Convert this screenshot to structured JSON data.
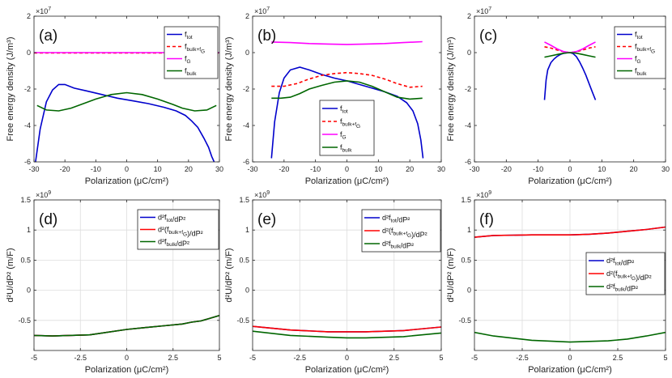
{
  "chart_data": [
    {
      "type": "line",
      "label": "(a)",
      "scale": "×10",
      "scale_exp": "7",
      "xlabel": "Polarization",
      "xunit": "(μC/cm²)",
      "ylabel": "Free energy density (J/m³)",
      "xlim": [
        -30,
        30
      ],
      "ylim": [
        -6,
        2
      ],
      "xticks": [
        "-30",
        "-20",
        "-10",
        "0",
        "10",
        "20",
        "30"
      ],
      "yticks": [
        "-6",
        "-4",
        "-2",
        "0",
        "2"
      ],
      "grid": false,
      "legend_position": "top-right",
      "series": [
        {
          "name": "f_tot",
          "color": "#0000cc",
          "dash": "",
          "x": [
            -29.5,
            -28,
            -26,
            -24,
            -22,
            -20,
            -17,
            -13,
            -8,
            -3,
            2,
            7,
            12,
            16,
            19,
            21,
            23,
            25,
            26.5,
            27.5,
            28.3
          ],
          "y": [
            -6,
            -4.2,
            -2.7,
            -2.05,
            -1.75,
            -1.75,
            -1.95,
            -2.1,
            -2.3,
            -2.5,
            -2.65,
            -2.8,
            -3.0,
            -3.2,
            -3.45,
            -3.75,
            -4.1,
            -4.7,
            -5.2,
            -5.7,
            -6
          ]
        },
        {
          "name": "f_bulk+f_G",
          "color": "#ff0000",
          "dash": "4 3",
          "x": [
            -30,
            30
          ],
          "y": [
            -0.02,
            -0.02
          ]
        },
        {
          "name": "f_G",
          "color": "#ff00ff",
          "dash": "",
          "x": [
            -30,
            30
          ],
          "y": [
            0,
            0
          ]
        },
        {
          "name": "f_bulk",
          "color": "#006600",
          "dash": "",
          "x": [
            -29,
            -26,
            -22,
            -18,
            -14,
            -10,
            -5,
            0,
            5,
            10,
            15,
            18,
            22,
            26,
            29
          ],
          "y": [
            -2.9,
            -3.15,
            -3.2,
            -3.05,
            -2.8,
            -2.55,
            -2.3,
            -2.2,
            -2.3,
            -2.55,
            -2.85,
            -3.05,
            -3.2,
            -3.15,
            -2.9
          ]
        }
      ]
    },
    {
      "type": "line",
      "label": "(b)",
      "scale": "×10",
      "scale_exp": "7",
      "xlabel": "Polarization",
      "xunit": "(μC/cm²)",
      "ylabel": "Free energy density (J/m³)",
      "xlim": [
        -30,
        30
      ],
      "ylim": [
        -6,
        2
      ],
      "xticks": [
        "-30",
        "-20",
        "-10",
        "0",
        "10",
        "20",
        "30"
      ],
      "yticks": [
        "-6",
        "-4",
        "-2",
        "0",
        "2"
      ],
      "grid": false,
      "legend_position": "bottom-right",
      "series": [
        {
          "name": "f_tot",
          "color": "#0000cc",
          "dash": "",
          "x": [
            -24,
            -23,
            -21.5,
            -20,
            -18,
            -15,
            -12,
            -8,
            -4,
            0,
            4,
            8,
            12,
            16,
            19,
            21,
            22.5,
            23.5,
            24.2
          ],
          "y": [
            -5.8,
            -3.8,
            -2.2,
            -1.4,
            -0.95,
            -0.8,
            -0.95,
            -1.2,
            -1.4,
            -1.55,
            -1.75,
            -1.95,
            -2.15,
            -2.4,
            -2.75,
            -3.2,
            -3.9,
            -4.8,
            -5.8
          ]
        },
        {
          "name": "f_bulk+f_G",
          "color": "#ff0000",
          "dash": "4 3",
          "x": [
            -24,
            -20,
            -16,
            -12,
            -8,
            -4,
            0,
            4,
            8,
            12,
            16,
            20,
            24
          ],
          "y": [
            -1.85,
            -1.85,
            -1.7,
            -1.45,
            -1.25,
            -1.15,
            -1.1,
            -1.15,
            -1.25,
            -1.45,
            -1.7,
            -1.9,
            -1.85
          ]
        },
        {
          "name": "f_G",
          "color": "#ff00ff",
          "dash": "",
          "x": [
            -24,
            -18,
            -12,
            -6,
            0,
            6,
            12,
            18,
            24
          ],
          "y": [
            0.58,
            0.55,
            0.5,
            0.47,
            0.45,
            0.47,
            0.5,
            0.55,
            0.6
          ]
        },
        {
          "name": "f_bulk",
          "color": "#006600",
          "dash": "",
          "x": [
            -24,
            -21,
            -18,
            -15,
            -12,
            -8,
            -4,
            0,
            4,
            8,
            12,
            16,
            20,
            24
          ],
          "y": [
            -2.5,
            -2.5,
            -2.45,
            -2.25,
            -2.0,
            -1.8,
            -1.62,
            -1.55,
            -1.62,
            -1.85,
            -2.15,
            -2.45,
            -2.55,
            -2.5
          ]
        }
      ]
    },
    {
      "type": "line",
      "label": "(c)",
      "scale": "×10",
      "scale_exp": "7",
      "xlabel": "Polarization",
      "xunit": "(μC/cm²)",
      "ylabel": "Free energy density (J/m³)",
      "xlim": [
        -30,
        30
      ],
      "ylim": [
        -6,
        2
      ],
      "xticks": [
        "-30",
        "-20",
        "-10",
        "0",
        "10",
        "20",
        "30"
      ],
      "yticks": [
        "-6",
        "-4",
        "-2",
        "0",
        "2"
      ],
      "grid": false,
      "legend_position": "top-right",
      "series": [
        {
          "name": "f_tot",
          "color": "#0000cc",
          "dash": "",
          "x": [
            -8,
            -7.5,
            -7,
            -6,
            -5,
            -4,
            -3,
            -2,
            -1,
            0,
            1,
            2,
            3,
            4,
            5,
            6,
            7,
            8
          ],
          "y": [
            -2.6,
            -1.5,
            -0.95,
            -0.55,
            -0.35,
            -0.2,
            -0.1,
            -0.04,
            -0.01,
            0,
            -0.06,
            -0.22,
            -0.5,
            -0.85,
            -1.25,
            -1.7,
            -2.15,
            -2.6
          ]
        },
        {
          "name": "f_bulk+f_G",
          "color": "#ff0000",
          "dash": "4 3",
          "x": [
            -8,
            -6,
            -4,
            -2,
            0,
            2,
            4,
            6,
            8
          ],
          "y": [
            0.32,
            0.25,
            0.14,
            0.05,
            0,
            0.05,
            0.14,
            0.25,
            0.32
          ]
        },
        {
          "name": "f_G",
          "color": "#ff00ff",
          "dash": "",
          "x": [
            -8,
            -6,
            -4,
            -2,
            0,
            2,
            4,
            6,
            8
          ],
          "y": [
            0.58,
            0.4,
            0.2,
            0.06,
            0,
            0.06,
            0.2,
            0.4,
            0.58
          ]
        },
        {
          "name": "f_bulk",
          "color": "#006600",
          "dash": "",
          "x": [
            -8,
            -6,
            -4,
            -2,
            0,
            2,
            4,
            6,
            8
          ],
          "y": [
            -0.25,
            -0.18,
            -0.1,
            -0.03,
            0,
            -0.03,
            -0.1,
            -0.18,
            -0.25
          ]
        }
      ]
    },
    {
      "type": "line",
      "label": "(d)",
      "scale": "×10",
      "scale_exp": "9",
      "xlabel": "Polarization",
      "xunit": "(μC/cm²)",
      "ylabel": "d²U/dP² (m/F)",
      "xlim": [
        -5,
        5
      ],
      "ylim": [
        -1,
        1.5
      ],
      "xticks": [
        "-5",
        "-2.5",
        "0",
        "2.5",
        "5"
      ],
      "yticks": [
        "-0.5",
        "0",
        "0.5",
        "1",
        "1.5"
      ],
      "grid": true,
      "legend_position": "top-right",
      "series": [
        {
          "name": "d²f_tot/dP²",
          "color": "#0000cc",
          "dash": "",
          "x": [
            -5,
            -4,
            -2,
            0,
            1,
            2,
            3,
            3.5,
            4,
            5
          ],
          "y": [
            -0.75,
            -0.76,
            -0.74,
            -0.65,
            -0.62,
            -0.59,
            -0.56,
            -0.53,
            -0.51,
            -0.42
          ]
        },
        {
          "name": "d²(f_bulk+f_G)/dP²",
          "color": "#ff0000",
          "dash": "",
          "x": [
            -5,
            -4,
            -2,
            0,
            1,
            2,
            3,
            3.5,
            4,
            5
          ],
          "y": [
            -0.75,
            -0.76,
            -0.74,
            -0.65,
            -0.62,
            -0.59,
            -0.56,
            -0.53,
            -0.51,
            -0.42
          ]
        },
        {
          "name": "d²f_bulk/dP²",
          "color": "#006600",
          "dash": "",
          "x": [
            -5,
            -4,
            -2,
            0,
            1,
            2,
            3,
            3.5,
            4,
            5
          ],
          "y": [
            -0.75,
            -0.76,
            -0.74,
            -0.65,
            -0.62,
            -0.59,
            -0.56,
            -0.53,
            -0.51,
            -0.42
          ]
        }
      ]
    },
    {
      "type": "line",
      "label": "(e)",
      "scale": "×10",
      "scale_exp": "9",
      "xlabel": "Polarization",
      "xunit": "(μC/cm²)",
      "ylabel": "d²U/dP² (m/F)",
      "xlim": [
        -5,
        5
      ],
      "ylim": [
        -1,
        1.5
      ],
      "xticks": [
        "-5",
        "-2.5",
        "0",
        "2.5",
        "5"
      ],
      "yticks": [
        "-0.5",
        "0",
        "0.5",
        "1",
        "1.5"
      ],
      "grid": true,
      "legend_position": "top-right",
      "series": [
        {
          "name": "d²f_tot/dP²",
          "color": "#0000cc",
          "dash": "",
          "x": [
            -5,
            -3,
            -1,
            0,
            1,
            3,
            5
          ],
          "y": [
            -0.6,
            -0.66,
            -0.69,
            -0.69,
            -0.69,
            -0.67,
            -0.61
          ]
        },
        {
          "name": "d²(f_bulk+f_G)/dP²",
          "color": "#ff0000",
          "dash": "",
          "x": [
            -5,
            -3,
            -1,
            0,
            1,
            3,
            5
          ],
          "y": [
            -0.6,
            -0.66,
            -0.69,
            -0.69,
            -0.69,
            -0.67,
            -0.61
          ]
        },
        {
          "name": "d²f_bulk/dP²",
          "color": "#006600",
          "dash": "",
          "x": [
            -5,
            -3,
            -1,
            0,
            1,
            3,
            5
          ],
          "y": [
            -0.68,
            -0.75,
            -0.78,
            -0.79,
            -0.79,
            -0.77,
            -0.71
          ]
        }
      ]
    },
    {
      "type": "line",
      "label": "(f)",
      "scale": "×10",
      "scale_exp": "9",
      "xlabel": "Polarization",
      "xunit": "(μC/cm²)",
      "ylabel": "d²U/dP² (m/F)",
      "xlim": [
        -5,
        5
      ],
      "ylim": [
        -1,
        1.5
      ],
      "xticks": [
        "-5",
        "-2.5",
        "0",
        "2.5",
        "5"
      ],
      "yticks": [
        "-0.5",
        "0",
        "0.5",
        "1",
        "1.5"
      ],
      "grid": true,
      "legend_position": "center-right",
      "series": [
        {
          "name": "d²f_tot/dP²",
          "color": "#0000cc",
          "dash": "",
          "x": [
            -5,
            -4,
            -2,
            0,
            1,
            2,
            3,
            4,
            5
          ],
          "y": [
            0.88,
            0.91,
            0.92,
            0.92,
            0.93,
            0.95,
            0.98,
            1.01,
            1.05
          ]
        },
        {
          "name": "d²(f_bulk+f_G)/dP²",
          "color": "#ff0000",
          "dash": "",
          "x": [
            -5,
            -4,
            -2,
            0,
            1,
            2,
            3,
            4,
            5
          ],
          "y": [
            0.88,
            0.91,
            0.92,
            0.92,
            0.93,
            0.95,
            0.98,
            1.01,
            1.05
          ]
        },
        {
          "name": "d²f_bulk/dP²",
          "color": "#006600",
          "dash": "",
          "x": [
            -5,
            -4,
            -2,
            0,
            2,
            3,
            4,
            5
          ],
          "y": [
            -0.7,
            -0.76,
            -0.83,
            -0.86,
            -0.84,
            -0.81,
            -0.76,
            -0.7
          ]
        }
      ]
    }
  ]
}
